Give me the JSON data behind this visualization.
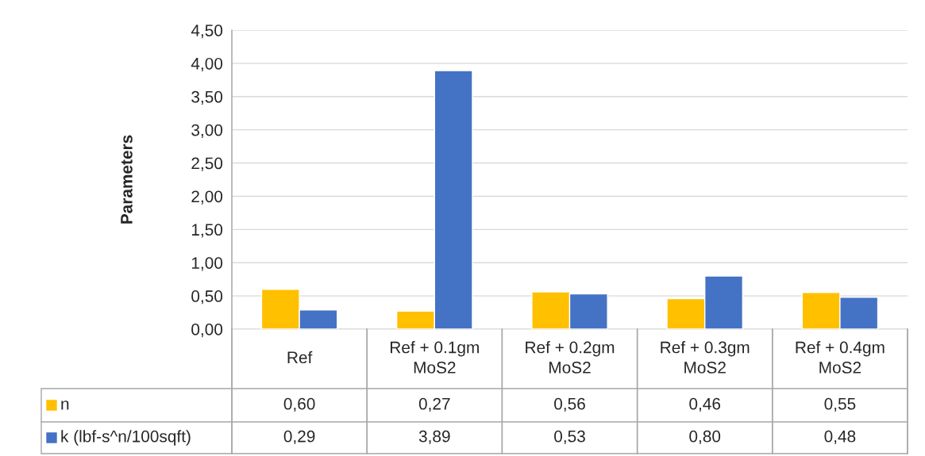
{
  "chart_data": {
    "type": "bar",
    "ylabel": "Parameters",
    "categories": [
      "Ref",
      "Ref + 0.1gm\nMoS2",
      "Ref + 0.2gm\nMoS2",
      "Ref + 0.3gm\nMoS2",
      "Ref + 0.4gm\nMoS2"
    ],
    "series": [
      {
        "name": "n",
        "color": "#ffc000",
        "values": [
          0.6,
          0.27,
          0.56,
          0.46,
          0.55
        ],
        "value_labels": [
          "0,60",
          "0,27",
          "0,56",
          "0,46",
          "0,55"
        ]
      },
      {
        "name": "k (lbf-s^n/100sqft)",
        "color": "#4472c4",
        "values": [
          0.29,
          3.89,
          0.53,
          0.8,
          0.48
        ],
        "value_labels": [
          "0,29",
          "3,89",
          "0,53",
          "0,80",
          "0,48"
        ]
      }
    ],
    "ylim": [
      0,
      4.5
    ],
    "yticks": [
      {
        "value": 0,
        "label": "0,00"
      },
      {
        "value": 0.5,
        "label": "0,50"
      },
      {
        "value": 1,
        "label": "1,00"
      },
      {
        "value": 1.5,
        "label": "1,50"
      },
      {
        "value": 2,
        "label": "2,00"
      },
      {
        "value": 2.5,
        "label": "2,50"
      },
      {
        "value": 3,
        "label": "3,00"
      },
      {
        "value": 3.5,
        "label": "3,50"
      },
      {
        "value": 4,
        "label": "4,00"
      },
      {
        "value": 4.5,
        "label": "4,50"
      }
    ],
    "grid": "y",
    "legend": "bottom"
  }
}
